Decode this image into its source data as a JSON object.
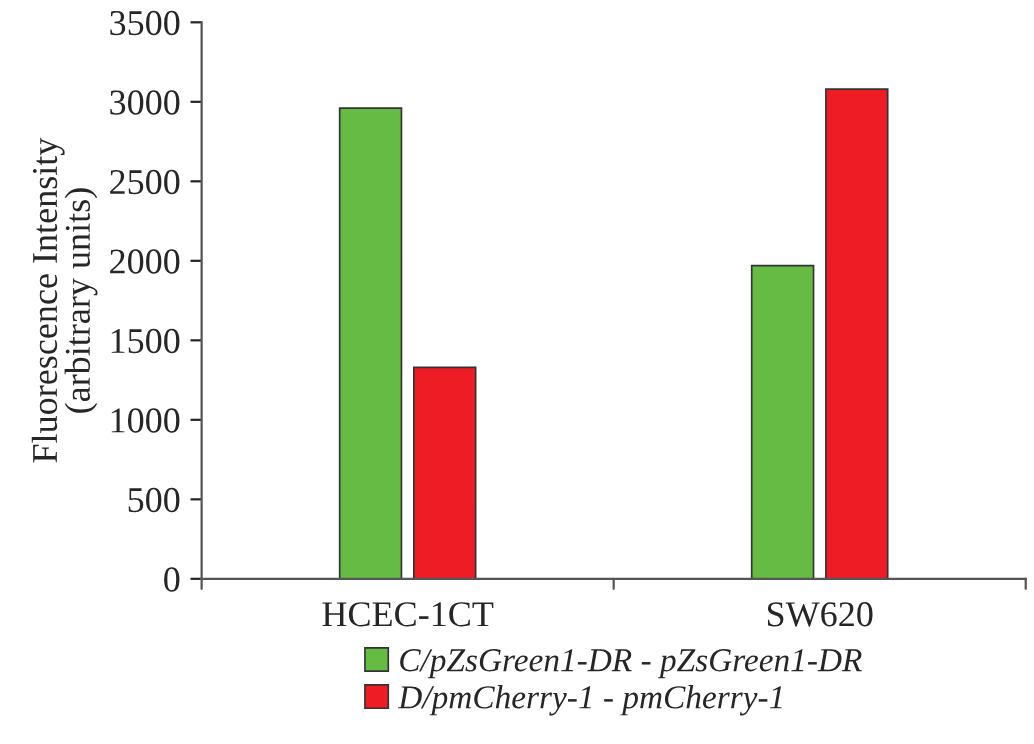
{
  "chart_data": {
    "type": "bar",
    "ylabel": "Fluorescence Intensity\n(arbitrary units)",
    "categories": [
      "HCEC-1CT",
      "SW620"
    ],
    "series": [
      {
        "name": "C/pZsGreen1-DR - pZsGreen1-DR",
        "color": "#66bb44",
        "values": [
          2960,
          1970
        ]
      },
      {
        "name": "D/pmCherry-1 - pmCherry-1",
        "color": "#ee1c24",
        "values": [
          1330,
          3080
        ]
      }
    ],
    "ylim": [
      0,
      3500
    ],
    "yticks": [
      0,
      500,
      1000,
      1500,
      2000,
      2500,
      3000,
      3500
    ],
    "grid": false,
    "legend": "bottom"
  }
}
